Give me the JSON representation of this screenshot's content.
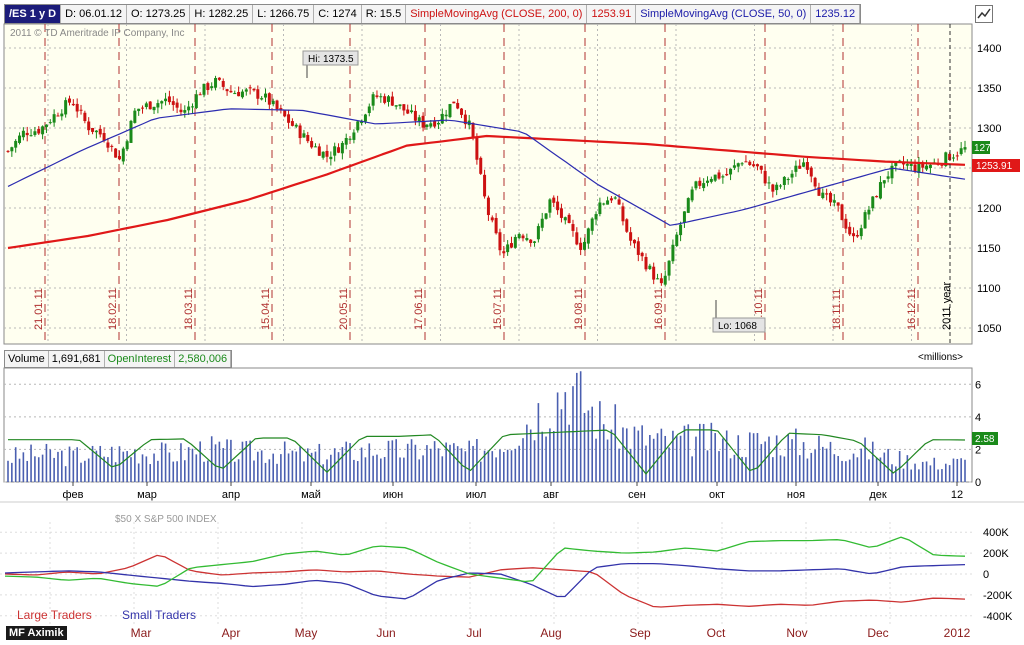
{
  "header": {
    "symbol": "/ES 1 y D",
    "date": "D: 06.01.12",
    "open": "O: 1273.25",
    "high": "H: 1282.25",
    "low": "L: 1266.75",
    "close": "C: 1274",
    "range": "R: 15.5",
    "sma200_label": "SimpleMovingAvg (CLOSE, 200, 0)",
    "sma200_value": "1253.91",
    "sma50_label": "SimpleMovingAvg (CLOSE, 50, 0)",
    "sma50_value": "1235.12"
  },
  "copyright": "2011 © TD Ameritrade IP Company, Inc",
  "volume_header": {
    "volume_label": "Volume",
    "volume_value": "1,691,681",
    "oi_label": "OpenInterest",
    "oi_value": "2,580,006",
    "units": "<millions>"
  },
  "cot_title": "$50 X S&P 500 INDEX",
  "watermark": "MF Aximik",
  "colors": {
    "up": "#1a8a1a",
    "down": "#cc1111",
    "sma200": "#e01818",
    "sma50": "#2c2cb0",
    "volume": "#4a5fb0",
    "oi": "#228822",
    "panel_bg": "#fffff0",
    "grid": "#b8b8b8"
  },
  "chart_data": [
    {
      "type": "candlestick",
      "title": "/ES 1 y D",
      "y_ticks": [
        1050,
        1100,
        1150,
        1200,
        1250,
        1300,
        1350,
        1400
      ],
      "ylim": [
        1030,
        1430
      ],
      "grid": true,
      "annotations": {
        "high": "Hi: 1373.5",
        "low": "Lo: 1068",
        "year": "2011 year"
      },
      "price_tags": {
        "last": "1274",
        "sma200": "1253.91"
      },
      "date_markers": [
        "21.01.11",
        "18.02.11",
        "18.03.11",
        "15.04.11",
        "20.05.11",
        "17.06.11",
        "15.07.11",
        "19.08.11",
        "16.09.11",
        "21.10.11",
        "18.11.11",
        "16.12.11"
      ],
      "close_anchors": [
        1271,
        1295,
        1298,
        1318,
        1335,
        1302,
        1290,
        1260,
        1323,
        1330,
        1335,
        1318,
        1345,
        1358,
        1345,
        1345,
        1340,
        1320,
        1300,
        1280,
        1265,
        1280,
        1310,
        1340,
        1335,
        1320,
        1305,
        1310,
        1335,
        1300,
        1200,
        1140,
        1170,
        1160,
        1210,
        1180,
        1150,
        1205,
        1215,
        1160,
        1130,
        1100,
        1170,
        1225,
        1240,
        1240,
        1260,
        1250,
        1220,
        1240,
        1260,
        1215,
        1200,
        1160,
        1200,
        1240,
        1255,
        1250,
        1255,
        1265,
        1274
      ],
      "sma200_anchors": [
        1150,
        1165,
        1185,
        1210,
        1242,
        1278,
        1290,
        1285,
        1280,
        1272,
        1264,
        1258,
        1254
      ],
      "sma50_anchors": [
        1227,
        1272,
        1312,
        1324,
        1322,
        1305,
        1310,
        1295,
        1230,
        1178,
        1198,
        1224,
        1250,
        1236
      ],
      "series": [
        {
          "name": "SimpleMovingAvg (CLOSE, 200, 0)"
        },
        {
          "name": "SimpleMovingAvg (CLOSE, 50, 0)"
        }
      ]
    },
    {
      "type": "bar",
      "title": "Volume",
      "y_ticks": [
        0,
        2,
        4,
        6
      ],
      "ylim": [
        0,
        7
      ],
      "x_ticks": [
        "фев",
        "мар",
        "апр",
        "май",
        "июн",
        "июл",
        "авг",
        "сен",
        "окт",
        "ноя",
        "дек",
        "12"
      ],
      "volume_anchors": [
        1.6,
        1.8,
        1.7,
        1.9,
        2.0,
        1.8,
        2.2,
        1.9,
        2.0,
        1.7,
        1.9,
        2.1,
        2.0,
        2.2,
        1.9,
        2.6,
        4.5,
        6.3,
        3.9,
        3.0,
        2.6,
        2.8,
        2.5,
        2.7,
        2.5,
        2.2,
        2.1,
        1.5,
        1.2,
        1.3
      ],
      "oi_anchors": [
        2.6,
        2.6,
        2.6,
        0.8,
        2.6,
        2.65,
        0.7,
        2.7,
        2.7,
        0.6,
        2.8,
        2.8,
        2.9,
        0.6,
        2.9,
        3.0,
        3.1,
        3.2,
        0.5,
        3.2,
        3.2,
        0.5,
        3.0,
        2.9,
        2.5,
        0.5,
        2.6,
        2.58
      ],
      "last_oi": "2.58"
    },
    {
      "type": "line",
      "title": "$50 X S&P 500 INDEX",
      "y_ticks": [
        "400K",
        "200K",
        "0",
        "-200K",
        "-400K"
      ],
      "y_tick_values": [
        400,
        200,
        0,
        -200,
        -400
      ],
      "ylim": [
        -450,
        450
      ],
      "x_ticks": [
        "Mar",
        "Apr",
        "May",
        "Jun",
        "Jul",
        "Aug",
        "Sep",
        "Oct",
        "Nov",
        "Dec",
        "2012"
      ],
      "legend": [
        {
          "name": "Large Traders",
          "color": "#cc3333"
        },
        {
          "name": "Small Traders",
          "color": "#3333aa"
        }
      ],
      "series": [
        {
          "name": "Large Traders",
          "values": [
            0,
            -10,
            20,
            0,
            60,
            190,
            30,
            -10,
            10,
            20,
            40,
            20,
            30,
            0,
            -20,
            -30,
            40,
            60,
            40,
            20,
            -200,
            -320,
            -300,
            -290,
            -310,
            -290,
            -300,
            -260,
            -250,
            -270,
            -230,
            -240
          ]
        },
        {
          "name": "Small Traders",
          "values": [
            10,
            20,
            30,
            20,
            -10,
            -40,
            -70,
            -90,
            -120,
            -100,
            -60,
            -90,
            -210,
            -240,
            -60,
            10,
            0,
            -100,
            -240,
            60,
            100,
            100,
            80,
            50,
            30,
            30,
            40,
            50,
            0,
            70,
            80,
            90
          ]
        },
        {
          "name": "",
          "values": [
            -20,
            -30,
            -60,
            -40,
            -90,
            -120,
            60,
            90,
            120,
            190,
            220,
            180,
            270,
            250,
            110,
            0,
            -40,
            -80,
            250,
            220,
            200,
            210,
            250,
            220,
            310,
            320,
            320,
            330,
            250,
            360,
            180,
            170
          ]
        }
      ]
    }
  ]
}
